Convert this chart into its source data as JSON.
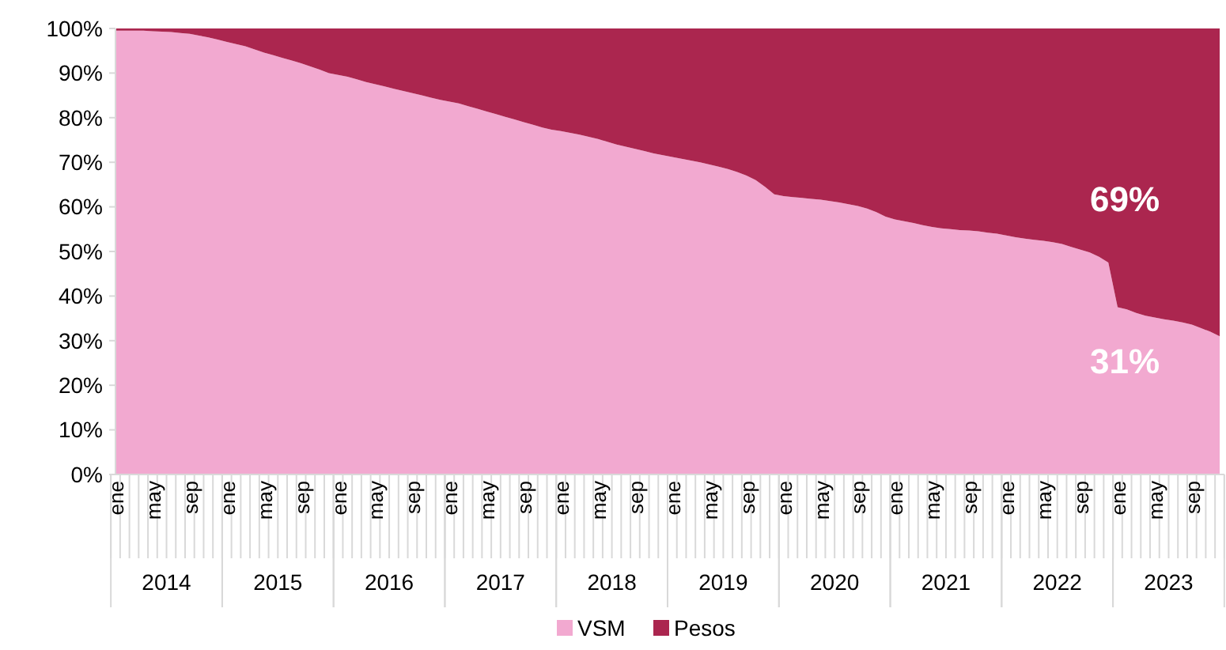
{
  "chart_data": {
    "type": "area",
    "stacked": true,
    "categories": [
      "ene",
      null,
      null,
      null,
      "may",
      null,
      null,
      null,
      "sep",
      null,
      null,
      null,
      "ene",
      null,
      null,
      null,
      "may",
      null,
      null,
      null,
      "sep",
      null,
      null,
      null,
      "ene",
      null,
      null,
      null,
      "may",
      null,
      null,
      null,
      "sep",
      null,
      null,
      null,
      "ene",
      null,
      null,
      null,
      "may",
      null,
      null,
      null,
      "sep",
      null,
      null,
      null,
      "ene",
      null,
      null,
      null,
      "may",
      null,
      null,
      null,
      "sep",
      null,
      null,
      null,
      "ene",
      null,
      null,
      null,
      "may",
      null,
      null,
      null,
      "sep",
      null,
      null,
      null,
      "ene",
      null,
      null,
      null,
      "may",
      null,
      null,
      null,
      "sep",
      null,
      null,
      null,
      "ene",
      null,
      null,
      null,
      "may",
      null,
      null,
      null,
      "sep",
      null,
      null,
      null,
      "ene",
      null,
      null,
      null,
      "may",
      null,
      null,
      null,
      "sep",
      null,
      null,
      null,
      "ene",
      null,
      null,
      null,
      "may",
      null,
      null,
      null,
      "sep",
      null,
      null,
      null
    ],
    "series": [
      {
        "name": "VSM",
        "color": "#f2a9d0",
        "values": [
          99.5,
          99.5,
          99.5,
          99.5,
          99.4,
          99.3,
          99.2,
          99,
          98.8,
          98.4,
          98,
          97.5,
          97,
          96.5,
          96,
          95.3,
          94.6,
          94,
          93.4,
          92.8,
          92.2,
          91.5,
          90.8,
          90,
          89.6,
          89.2,
          88.6,
          88,
          87.5,
          87,
          86.5,
          86,
          85.5,
          85,
          84.5,
          84,
          83.6,
          83.2,
          82.6,
          82,
          81.4,
          80.8,
          80.2,
          79.6,
          79,
          78.4,
          77.8,
          77.3,
          77,
          76.6,
          76.2,
          75.7,
          75.2,
          74.6,
          74,
          73.5,
          73,
          72.5,
          72,
          71.6,
          71.2,
          70.8,
          70.4,
          70,
          69.5,
          69,
          68.5,
          67.8,
          67,
          66,
          64.5,
          62.8,
          62.4,
          62.2,
          62,
          61.8,
          61.6,
          61.3,
          61,
          60.6,
          60.2,
          59.6,
          58.8,
          57.8,
          57.2,
          56.8,
          56.4,
          55.9,
          55.5,
          55.2,
          55,
          54.8,
          54.7,
          54.5,
          54.2,
          54,
          53.6,
          53.2,
          52.9,
          52.6,
          52.4,
          52.1,
          51.7,
          51,
          50.4,
          49.8,
          48.8,
          47.5,
          37.5,
          37,
          36.2,
          35.6,
          35.2,
          34.8,
          34.5,
          34.1,
          33.6,
          32.8,
          32,
          31
        ]
      },
      {
        "name": "Pesos",
        "color": "#ab264f",
        "values": [
          0.5,
          0.5,
          0.5,
          0.5,
          0.6,
          0.7,
          0.8,
          1,
          1.2,
          1.6,
          2,
          2.5,
          3,
          3.5,
          4,
          4.7,
          5.4,
          6,
          6.6,
          7.2,
          7.8,
          8.5,
          9.2,
          10,
          10.4,
          10.8,
          11.4,
          12,
          12.5,
          13,
          13.5,
          14,
          14.5,
          15,
          15.5,
          16,
          16.4,
          16.8,
          17.4,
          18,
          18.6,
          19.2,
          19.8,
          20.4,
          21,
          21.6,
          22.2,
          22.7,
          23,
          23.4,
          23.8,
          24.3,
          24.8,
          25.4,
          26,
          26.5,
          27,
          27.5,
          28,
          28.4,
          28.8,
          29.2,
          29.6,
          30,
          30.5,
          31,
          31.5,
          32.2,
          33,
          34,
          35.5,
          37.2,
          37.6,
          37.8,
          38,
          38.2,
          38.4,
          38.7,
          39,
          39.4,
          39.8,
          40.4,
          41.2,
          42.2,
          42.8,
          43.2,
          43.6,
          44.1,
          44.5,
          44.8,
          45,
          45.2,
          45.3,
          45.5,
          45.8,
          46,
          46.4,
          46.8,
          47.1,
          47.4,
          47.6,
          47.9,
          48.3,
          49,
          49.6,
          50.2,
          51.2,
          52.5,
          62.5,
          63,
          63.8,
          64.4,
          64.8,
          65.2,
          65.5,
          65.9,
          66.4,
          67.2,
          68,
          69
        ]
      }
    ],
    "ylim": [
      0,
      100
    ],
    "yticks": [
      {
        "value": 0,
        "label": "0%"
      },
      {
        "value": 10,
        "label": "10%"
      },
      {
        "value": 20,
        "label": "20%"
      },
      {
        "value": 30,
        "label": "30%"
      },
      {
        "value": 40,
        "label": "40%"
      },
      {
        "value": 50,
        "label": "50%"
      },
      {
        "value": 60,
        "label": "60%"
      },
      {
        "value": 70,
        "label": "70%"
      },
      {
        "value": 80,
        "label": "80%"
      },
      {
        "value": 90,
        "label": "90%"
      },
      {
        "value": 100,
        "label": "100%"
      }
    ],
    "annotations": [
      "69%",
      "31%",
      "2014",
      "2015",
      "2016",
      "2017",
      "2018",
      "2019",
      "2020",
      "2021",
      "2022",
      "2023"
    ],
    "legend": "bottom",
    "grid": false
  }
}
